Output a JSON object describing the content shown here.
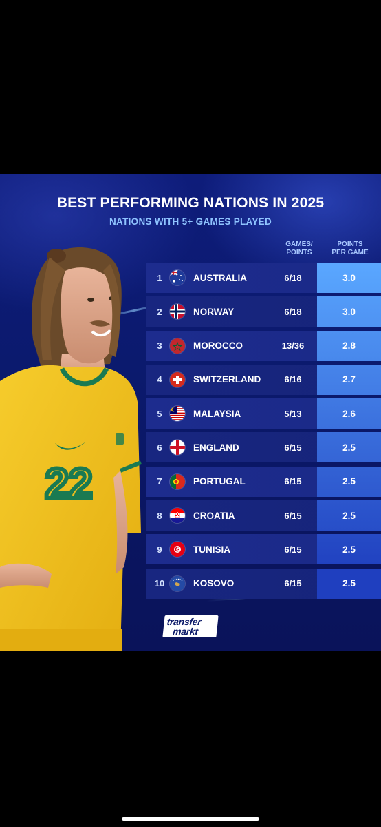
{
  "title": "BEST PERFORMING NATIONS IN 2025",
  "subtitle": "NATIONS WITH 5+ GAMES PLAYED",
  "headers": {
    "games_points": "GAMES/\nPOINTS",
    "points_per_game": "POINTS\nPER GAME"
  },
  "rows": [
    {
      "rank": "1",
      "country": "AUSTRALIA",
      "games_points": "6/18",
      "ppg": "3.0",
      "flag": "australia-flag-icon"
    },
    {
      "rank": "2",
      "country": "NORWAY",
      "games_points": "6/18",
      "ppg": "3.0",
      "flag": "norway-flag-icon"
    },
    {
      "rank": "3",
      "country": "MOROCCO",
      "games_points": "13/36",
      "ppg": "2.8",
      "flag": "morocco-flag-icon"
    },
    {
      "rank": "4",
      "country": "SWITZERLAND",
      "games_points": "6/16",
      "ppg": "2.7",
      "flag": "switzerland-flag-icon"
    },
    {
      "rank": "5",
      "country": "MALAYSIA",
      "games_points": "5/13",
      "ppg": "2.6",
      "flag": "malaysia-flag-icon"
    },
    {
      "rank": "6",
      "country": "ENGLAND",
      "games_points": "6/15",
      "ppg": "2.5",
      "flag": "england-flag-icon"
    },
    {
      "rank": "7",
      "country": "PORTUGAL",
      "games_points": "6/15",
      "ppg": "2.5",
      "flag": "portugal-flag-icon"
    },
    {
      "rank": "8",
      "country": "CROATIA",
      "games_points": "6/15",
      "ppg": "2.5",
      "flag": "croatia-flag-icon"
    },
    {
      "rank": "9",
      "country": "TUNISIA",
      "games_points": "6/15",
      "ppg": "2.5",
      "flag": "tunisia-flag-icon"
    },
    {
      "rank": "10",
      "country": "KOSOVO",
      "games_points": "6/15",
      "ppg": "2.5",
      "flag": "kosovo-flag-icon"
    }
  ],
  "player": {
    "shirt_number": "22"
  },
  "logo": {
    "line1": "transfer",
    "line2": "markt"
  },
  "colors": {
    "background": "#0b1a6e",
    "accent": "#8fc4ff",
    "ppg_top": "#5aa7ff",
    "ppg_bottom": "#1f3fbf",
    "jersey": "#f2c21a"
  }
}
